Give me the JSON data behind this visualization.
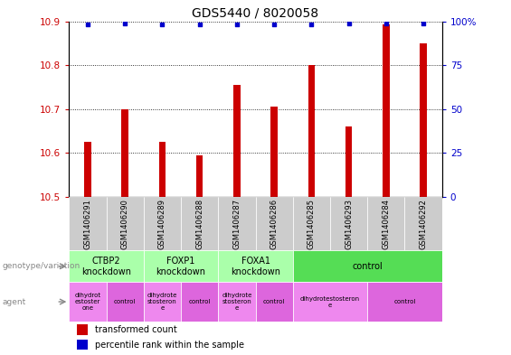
{
  "title": "GDS5440 / 8020058",
  "samples": [
    "GSM1406291",
    "GSM1406290",
    "GSM1406289",
    "GSM1406288",
    "GSM1406287",
    "GSM1406286",
    "GSM1406285",
    "GSM1406293",
    "GSM1406284",
    "GSM1406292"
  ],
  "bar_values": [
    10.625,
    10.7,
    10.625,
    10.595,
    10.755,
    10.705,
    10.8,
    10.66,
    10.893,
    10.85
  ],
  "dot_values": [
    98,
    99,
    98,
    98,
    98,
    98,
    98,
    99,
    99,
    99
  ],
  "ylim_left": [
    10.5,
    10.9
  ],
  "ylim_right": [
    0,
    100
  ],
  "bar_color": "#cc0000",
  "dot_color": "#0000cc",
  "yticks_left": [
    10.5,
    10.6,
    10.7,
    10.8,
    10.9
  ],
  "ytick_labels_left": [
    "10.5",
    "10.6",
    "10.7",
    "10.8",
    "10.9"
  ],
  "yticks_right": [
    0,
    25,
    50,
    75,
    100
  ],
  "ytick_labels_right": [
    "0",
    "25",
    "50",
    "75",
    "100%"
  ],
  "genotype_groups": [
    {
      "label": "CTBP2\nknockdown",
      "start": 0,
      "end": 2,
      "color": "#aaffaa"
    },
    {
      "label": "FOXP1\nknockdown",
      "start": 2,
      "end": 4,
      "color": "#aaffaa"
    },
    {
      "label": "FOXA1\nknockdown",
      "start": 4,
      "end": 6,
      "color": "#aaffaa"
    },
    {
      "label": "control",
      "start": 6,
      "end": 10,
      "color": "#55dd55"
    }
  ],
  "agent_groups": [
    {
      "label": "dihydrot\nestoster\none",
      "start": 0,
      "end": 1,
      "color": "#ee88ee"
    },
    {
      "label": "control",
      "start": 1,
      "end": 2,
      "color": "#dd66dd"
    },
    {
      "label": "dihydrote\nstosteron\ne",
      "start": 2,
      "end": 3,
      "color": "#ee88ee"
    },
    {
      "label": "control",
      "start": 3,
      "end": 4,
      "color": "#dd66dd"
    },
    {
      "label": "dihydrote\nstosteron\ne",
      "start": 4,
      "end": 5,
      "color": "#ee88ee"
    },
    {
      "label": "control",
      "start": 5,
      "end": 6,
      "color": "#dd66dd"
    },
    {
      "label": "dihydrotestosteron\ne",
      "start": 6,
      "end": 8,
      "color": "#ee88ee"
    },
    {
      "label": "control",
      "start": 8,
      "end": 10,
      "color": "#dd66dd"
    }
  ],
  "legend_bar_label": "transformed count",
  "legend_dot_label": "percentile rank within the sample",
  "genotype_label": "genotype/variation",
  "agent_label": "agent",
  "bar_width": 0.18,
  "title_fontsize": 10,
  "tick_fontsize": 7.5,
  "sample_fontsize": 6.0,
  "annot_fontsize": 7.0,
  "legend_fontsize": 7.0
}
